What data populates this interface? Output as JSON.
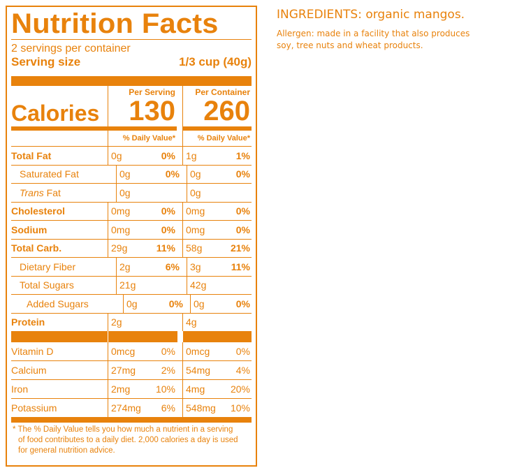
{
  "panel": {
    "title": "Nutrition Facts",
    "servings_per_container": "2 servings per container",
    "serving_size_label": "Serving size",
    "serving_size_value": "1/3 cup (40g)",
    "calories_label": "Calories",
    "per_serving_header": "Per Serving",
    "per_container_header": "Per Container",
    "calories_per_serving": "130",
    "calories_per_container": "260",
    "dv_header": "% Daily Value*",
    "nutrients": [
      {
        "name": "Total Fat",
        "s_amt": "0g",
        "s_dv": "0%",
        "c_amt": "1g",
        "c_dv": "1%"
      },
      {
        "name": "Saturated Fat",
        "s_amt": "0g",
        "s_dv": "0%",
        "c_amt": "0g",
        "c_dv": "0%"
      },
      {
        "name_italic": "Trans",
        "name_rest": " Fat",
        "s_amt": "0g",
        "s_dv": "",
        "c_amt": "0g",
        "c_dv": ""
      },
      {
        "name": "Cholesterol",
        "s_amt": "0mg",
        "s_dv": "0%",
        "c_amt": "0mg",
        "c_dv": "0%"
      },
      {
        "name": "Sodium",
        "s_amt": "0mg",
        "s_dv": "0%",
        "c_amt": "0mg",
        "c_dv": "0%"
      },
      {
        "name": "Total Carb.",
        "s_amt": "29g",
        "s_dv": "11%",
        "c_amt": "58g",
        "c_dv": "21%"
      },
      {
        "name": "Dietary Fiber",
        "s_amt": "2g",
        "s_dv": "6%",
        "c_amt": "3g",
        "c_dv": "11%"
      },
      {
        "name": "Total Sugars",
        "s_amt": "21g",
        "s_dv": "",
        "c_amt": "42g",
        "c_dv": ""
      },
      {
        "name": "Added Sugars",
        "s_amt": "0g",
        "s_dv": "0%",
        "c_amt": "0g",
        "c_dv": "0%"
      },
      {
        "name": "Protein",
        "s_amt": "2g",
        "s_dv": "",
        "c_amt": "4g",
        "c_dv": ""
      }
    ],
    "vitamins": [
      {
        "name": "Vitamin D",
        "s_amt": "0mcg",
        "s_dv": "0%",
        "c_amt": "0mcg",
        "c_dv": "0%"
      },
      {
        "name": "Calcium",
        "s_amt": "27mg",
        "s_dv": "2%",
        "c_amt": "54mg",
        "c_dv": "4%"
      },
      {
        "name": "Iron",
        "s_amt": "2mg",
        "s_dv": "10%",
        "c_amt": "4mg",
        "c_dv": "20%"
      },
      {
        "name": "Potassium",
        "s_amt": "274mg",
        "s_dv": "6%",
        "c_amt": "548mg",
        "c_dv": "10%"
      }
    ],
    "footnote_line1": "* The % Daily Value tells you how much a nutrient in a serving",
    "footnote_line2": "of food contributes to a daily diet. 2,000 calories a day is used",
    "footnote_line3": "for general nutrition advice."
  },
  "side": {
    "ingredients": "INGREDIENTS: organic mangos.",
    "allergen_line1": "Allergen: made in a facility that also produces",
    "allergen_line2": "soy, tree nuts and wheat products."
  },
  "colors": {
    "accent": "#e8820c",
    "background": "#ffffff"
  }
}
